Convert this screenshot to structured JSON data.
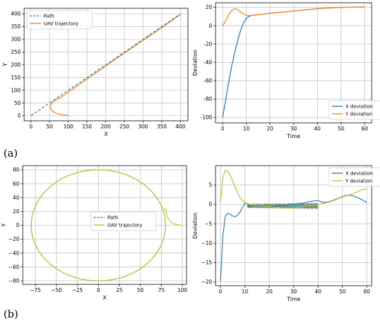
{
  "panel_labels": [
    "(a)",
    "(b)"
  ],
  "colors": {
    "blue": "#1f77b4",
    "orange": "#ff7f0e",
    "olive": "#bcbd22",
    "grid": "#b0b0b0"
  },
  "chart_data": [
    {
      "type": "line",
      "xlabel": "X",
      "ylabel": "Y",
      "xlim": [
        -18,
        420
      ],
      "ylim": [
        -20,
        422
      ],
      "xticks": [
        0,
        50,
        100,
        150,
        200,
        250,
        300,
        350,
        400
      ],
      "yticks": [
        0,
        50,
        100,
        150,
        200,
        250,
        300,
        350,
        400
      ],
      "grid": true,
      "legend_position": "upper-left",
      "series": [
        {
          "name": "Path",
          "color": "#1f77b4",
          "dash": true,
          "x": [
            0,
            400
          ],
          "y": [
            0,
            400
          ]
        },
        {
          "name": "UAV trajectory",
          "color": "#ff7f0e",
          "dash": false,
          "x": [
            100,
            85,
            70,
            60,
            54,
            52,
            53,
            56,
            61,
            68,
            80,
            150,
            250,
            350,
            398
          ],
          "y": [
            0,
            3,
            8,
            15,
            24,
            33,
            42,
            50,
            57,
            63,
            72,
            144,
            246,
            346,
            396
          ]
        }
      ]
    },
    {
      "type": "line",
      "xlabel": "Time",
      "ylabel": "Deviation",
      "xlim": [
        -3,
        63
      ],
      "ylim": [
        -106,
        25
      ],
      "xticks": [
        0,
        10,
        20,
        30,
        40,
        50,
        60
      ],
      "yticks": [
        -100,
        -80,
        -60,
        -40,
        -20,
        0,
        20
      ],
      "grid": true,
      "legend_position": "lower-right",
      "series": [
        {
          "name": "X deviation",
          "color": "#1f77b4",
          "x": [
            0,
            1,
            2,
            3,
            4,
            5,
            6,
            7,
            8,
            9,
            10,
            11,
            12,
            15,
            20,
            30,
            40,
            50,
            60
          ],
          "y": [
            -100,
            -85,
            -70,
            -55,
            -42,
            -30,
            -20,
            -10,
            -2,
            4,
            8,
            10,
            11,
            12,
            13.5,
            16,
            18.5,
            20,
            20.5
          ]
        },
        {
          "name": "Y deviation",
          "color": "#ff7f0e",
          "x": [
            0,
            1,
            2,
            3,
            4,
            5,
            6,
            7,
            8,
            9,
            10,
            11,
            12,
            15,
            20,
            30,
            40,
            50,
            60
          ],
          "y": [
            0,
            4,
            9,
            14,
            17,
            18.5,
            18,
            16,
            14,
            12.5,
            11.5,
            11,
            11,
            12,
            13.5,
            16,
            18.5,
            20,
            20.5
          ]
        }
      ]
    },
    {
      "type": "line",
      "xlabel": "X",
      "ylabel": "Y",
      "xlim": [
        -90,
        105
      ],
      "ylim": [
        -85,
        86
      ],
      "xticks": [
        -75,
        -50,
        -25,
        0,
        25,
        50,
        75,
        100
      ],
      "xtick_labels": [
        "−75",
        "−50",
        "−25",
        "0",
        "25",
        "50",
        "75",
        "100"
      ],
      "yticks": [
        -80,
        -60,
        -40,
        -20,
        0,
        20,
        40,
        60,
        80
      ],
      "ytick_labels": [
        "−80",
        "−60",
        "−40",
        "−20",
        "0",
        "20",
        "40",
        "60",
        "80"
      ],
      "grid": true,
      "legend_position": "center",
      "circle_radius": 80,
      "series": [
        {
          "name": "Path",
          "color": "#1f77b4",
          "dash": true
        },
        {
          "name": "UAV trajectory",
          "color": "#bcbd22",
          "dash": false,
          "approach_x": [
            100,
            96,
            90,
            86,
            83,
            81,
            80.5
          ],
          "approach_y": [
            0,
            0.5,
            2,
            5,
            10,
            17,
            24
          ]
        }
      ]
    },
    {
      "type": "line",
      "xlabel": "Time",
      "ylabel": "Deviation",
      "xlim": [
        -2,
        62
      ],
      "ylim": [
        -21,
        10
      ],
      "xticks": [
        0,
        10,
        20,
        30,
        40,
        50,
        60
      ],
      "yticks": [
        -20,
        -15,
        -10,
        -5,
        0,
        5
      ],
      "ytick_labels": [
        "−20",
        "−15",
        "−10",
        "−5",
        "0",
        "5"
      ],
      "grid": true,
      "legend_position": "upper-right",
      "series": [
        {
          "name": "X deviation",
          "color": "#1f77b4",
          "x": [
            0,
            1,
            2,
            3,
            4,
            5,
            6,
            7,
            8,
            9,
            10,
            11,
            12,
            14,
            16,
            18,
            20,
            22,
            24,
            26,
            28,
            30,
            32,
            34,
            36,
            38,
            40,
            42,
            44,
            46,
            48,
            50,
            52,
            54,
            56,
            58,
            60
          ],
          "y": [
            -20,
            -8,
            -3,
            -2.3,
            -2.5,
            -3,
            -3.2,
            -2.8,
            -2,
            -0.8,
            0.3,
            0.2,
            -0.5,
            -0.2,
            -0.5,
            -0.4,
            -0.6,
            -0.5,
            -0.4,
            -0.3,
            -0.2,
            0,
            0.2,
            0.4,
            0.6,
            0.9,
            1.0,
            0.5,
            0.6,
            1.0,
            1.5,
            2.0,
            2.4,
            2.3,
            1.8,
            1.2,
            0.5
          ]
        },
        {
          "name": "Y deviation",
          "color": "#bcbd22",
          "x": [
            0,
            1,
            2,
            3,
            4,
            5,
            6,
            7,
            8,
            9,
            10,
            11,
            12,
            14,
            16,
            18,
            20,
            22,
            24,
            26,
            28,
            30,
            32,
            34,
            36,
            38,
            40,
            42,
            44,
            46,
            48,
            50,
            52,
            54,
            56,
            58,
            60
          ],
          "y": [
            0.5,
            7,
            8.8,
            8.5,
            7.5,
            6,
            4.5,
            3,
            1.8,
            1,
            0.5,
            0.2,
            0,
            -0.2,
            -0.4,
            -0.5,
            -0.6,
            -0.7,
            -0.8,
            -0.9,
            -1.0,
            -0.9,
            -0.8,
            -0.5,
            -0.3,
            -0.1,
            0,
            0.2,
            0.5,
            0.9,
            1.4,
            1.9,
            2.3,
            2.7,
            3.2,
            3.8,
            4.0
          ]
        }
      ],
      "oscillation_colors": [
        "#1f77b4",
        "#ff7f0e",
        "#2ca02c",
        "#d62728",
        "#9467bd",
        "#8c564b",
        "#e377c2",
        "#7f7f7f",
        "#bcbd22",
        "#17becf"
      ]
    }
  ]
}
